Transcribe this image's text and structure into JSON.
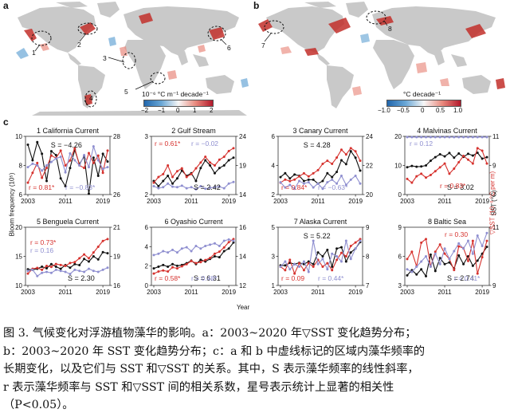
{
  "panel_labels": {
    "a": "a",
    "b": "b",
    "c": "c"
  },
  "map_a": {
    "colorbar_title": "10⁻⁶ °C m⁻¹ decade⁻¹",
    "colorbar_ticks": [
      "−2",
      "−1",
      "0",
      "1",
      "2"
    ],
    "region_labels": [
      "1",
      "2",
      "3",
      "4",
      "5",
      "6"
    ]
  },
  "map_b": {
    "colorbar_title": "°C decade⁻¹",
    "colorbar_ticks": [
      "−1.0",
      "−0.5",
      "0",
      "0.5",
      "1.0"
    ],
    "region_labels": [
      "7",
      "8"
    ]
  },
  "axes": {
    "ylabel_left": "Bloom frequency (10⁵)",
    "ylabel_right_red": "▽SST (10⁻⁶ °C per m)",
    "ylabel_right_blue": "SST (°C)",
    "xlabel": "Year"
  },
  "series_colors": {
    "bloom": "#111111",
    "grad": "#d6322e",
    "sst": "#8f8fd0"
  },
  "chart_data": [
    {
      "type": "line",
      "title": "1 California Current",
      "x": [
        2003,
        2004,
        2005,
        2006,
        2007,
        2008,
        2009,
        2010,
        2011,
        2012,
        2013,
        2014,
        2015,
        2016,
        2017,
        2018,
        2019,
        2020
      ],
      "series": [
        {
          "values": [
            9.6,
            8.4,
            9.8,
            8.9,
            6.8,
            9.1,
            8.8,
            7.0,
            6.4,
            7.8,
            9.2,
            8.1,
            8.7,
            5.8,
            8.6,
            7.2,
            8.9,
            8.3
          ]
        },
        {
          "values": [
            7.8,
            8.2,
            8.6,
            8.0,
            8.4,
            8.9,
            8.8,
            9.1,
            8.5,
            8.7,
            9.2,
            8.5,
            8.4,
            9.0,
            8.6,
            8.9,
            8.2,
            9.1
          ]
        },
        {
          "values": [
            26.4,
            26.6,
            26.5,
            26.2,
            26.5,
            26.7,
            26.9,
            27.0,
            26.1,
            27.2,
            26.8,
            26.5,
            27.1,
            26.4,
            27.6,
            26.8,
            26.3,
            26.4
          ]
        }
      ],
      "annotations": {
        "s": "S = −4.26",
        "r_grad": "r = 0.81*",
        "r_sst": "r = −0.83*"
      },
      "left_ticks": [
        "6",
        "8",
        "10"
      ],
      "right_ticks": [
        "26",
        "28"
      ],
      "ylim_left": [
        6,
        10
      ],
      "ylim_right": [
        25,
        28
      ]
    },
    {
      "type": "line",
      "title": "2 Gulf Stream",
      "x": [
        2003,
        2004,
        2005,
        2006,
        2007,
        2008,
        2009,
        2010,
        2011,
        2012,
        2013,
        2014,
        2015,
        2016,
        2017,
        2018,
        2019,
        2020
      ],
      "series": [
        {
          "values": [
            2.4,
            2.2,
            2.4,
            2.6,
            2.3,
            2.5,
            2.8,
            2.6,
            2.7,
            2.4,
            2.9,
            3.2,
            3.0,
            2.7,
            2.9,
            3.0,
            3.2,
            3.3
          ]
        },
        {
          "values": [
            2.3,
            2.5,
            2.6,
            2.9,
            2.5,
            2.7,
            2.8,
            2.5,
            2.6,
            2.8,
            3.0,
            3.2,
            3.0,
            2.9,
            3.1,
            3.2,
            3.4,
            3.5
          ]
        },
        {
          "values": [
            15.0,
            14.6,
            14.8,
            15.5,
            14.9,
            14.8,
            15.1,
            14.6,
            14.8,
            14.4,
            15.0,
            14.5,
            14.7,
            14.8,
            14.9,
            14.6,
            15.5,
            15.8
          ]
        }
      ],
      "annotations": {
        "s": "S = 2.42",
        "r_grad": "r = 0.61*",
        "r_sst": "r = −0.02"
      },
      "left_ticks": [
        "2",
        "3"
      ],
      "right_ticks": [
        "14",
        "19",
        "24"
      ],
      "ylim_left": [
        2,
        4
      ],
      "ylim_right": [
        14,
        24
      ]
    },
    {
      "type": "line",
      "title": "3 Canary Current",
      "x": [
        2003,
        2004,
        2005,
        2006,
        2007,
        2008,
        2009,
        2010,
        2011,
        2012,
        2013,
        2014,
        2015,
        2016,
        2017,
        2018,
        2019,
        2020
      ],
      "series": [
        {
          "values": [
            3.1,
            3.4,
            3.0,
            3.3,
            3.2,
            2.8,
            2.9,
            2.9,
            2.6,
            2.8,
            3.4,
            3.1,
            3.5,
            4.4,
            4.1,
            5.1,
            4.6,
            3.6
          ]
        },
        {
          "values": [
            3.0,
            3.2,
            3.1,
            3.2,
            3.4,
            3.6,
            3.4,
            3.6,
            3.8,
            4.2,
            4.4,
            4.2,
            4.6,
            5.1,
            4.8,
            5.2,
            5.0,
            4.4
          ]
        },
        {
          "values": [
            20.7,
            20.3,
            20.5,
            20.2,
            20.8,
            20.6,
            20.7,
            20.3,
            20.6,
            20.2,
            20.7,
            20.9,
            20.6,
            21.2,
            20.5,
            20.9,
            21.2,
            20.6
          ]
        }
      ],
      "annotations": {
        "s": "S = 4.28",
        "r_grad": "r = 0.84*",
        "r_sst": "r = −0.63*"
      },
      "left_ticks": [
        "2",
        "4",
        "6"
      ],
      "right_ticks": [
        "20",
        "22",
        "24"
      ],
      "ylim_left": [
        2,
        6
      ],
      "ylim_right": [
        20,
        24
      ]
    },
    {
      "type": "line",
      "title": "4 Malvinas Current",
      "x": [
        2003,
        2004,
        2005,
        2006,
        2007,
        2008,
        2009,
        2010,
        2011,
        2012,
        2013,
        2014,
        2015,
        2016,
        2017,
        2018,
        2019,
        2020
      ],
      "series": [
        {
          "values": [
            9.3,
            9.8,
            9.5,
            9.6,
            10.0,
            11.8,
            13.2,
            14.3,
            13.5,
            14.8,
            13.0,
            14.6,
            13.3,
            14.5,
            13.8,
            14.9,
            12.6,
            13.2
          ]
        },
        {
          "values": [
            12.6,
            12.3,
            12.8,
            13.0,
            12.7,
            12.9,
            13.2,
            13.5,
            13.8,
            13.0,
            13.4,
            13.9,
            14.4,
            14.1,
            13.8,
            15.0,
            14.8,
            13.8
          ]
        },
        {
          "values": [
            11.8,
            11.9,
            11.6,
            11.3,
            11.4,
            11.5,
            11.6,
            11.5,
            11.6,
            11.3,
            11.8,
            11.5,
            11.7,
            11.8,
            11.4,
            11.7,
            11.7,
            12.0
          ]
        }
      ],
      "annotations": {
        "s": "S = 3.02",
        "r_grad": "r = 0.83*",
        "r_sst": "r = 0.12"
      },
      "left_ticks": [
        "0",
        "10",
        "20"
      ],
      "right_ticks": [
        "7",
        "9",
        "11"
      ],
      "ylim_left": [
        0,
        20
      ],
      "ylim_right": [
        7,
        11
      ]
    },
    {
      "type": "line",
      "title": "5 Benguela Current",
      "x": [
        2003,
        2004,
        2005,
        2006,
        2007,
        2008,
        2009,
        2010,
        2011,
        2012,
        2013,
        2014,
        2015,
        2016,
        2017,
        2018,
        2019,
        2020
      ],
      "series": [
        {
          "values": [
            12.5,
            12.4,
            12.6,
            13.0,
            12.7,
            13.5,
            13.0,
            12.6,
            13.3,
            12.8,
            13.5,
            13.3,
            14.5,
            14.0,
            15.0,
            14.4,
            15.8,
            15.6
          ]
        },
        {
          "values": [
            12.4,
            12.9,
            13.0,
            12.8,
            13.2,
            13.1,
            13.4,
            13.3,
            13.2,
            13.5,
            13.6,
            14.0,
            14.4,
            14.0,
            14.6,
            15.2,
            15.8,
            16.0
          ]
        },
        {
          "values": [
            17.1,
            17.2,
            16.6,
            16.9,
            17.0,
            16.9,
            17.2,
            17.1,
            17.0,
            16.8,
            17.2,
            17.1,
            17.0,
            17.3,
            17.1,
            17.0,
            17.2,
            17.4
          ]
        }
      ],
      "annotations": {
        "s": "S = 2.30",
        "r_grad": "r = 0.73*",
        "r_sst": "r = 0.16"
      },
      "left_ticks": [
        "10",
        "15",
        "20"
      ],
      "right_ticks": [
        "16",
        "19",
        "21"
      ],
      "ylim_left": [
        10,
        20
      ],
      "ylim_right": [
        16,
        21
      ]
    },
    {
      "type": "line",
      "title": "6 Oyashio Current",
      "x": [
        2003,
        2004,
        2005,
        2006,
        2007,
        2008,
        2009,
        2010,
        2011,
        2012,
        2013,
        2014,
        2015,
        2016,
        2017,
        2018,
        2019,
        2020
      ],
      "series": [
        {
          "values": [
            1.6,
            1.8,
            2.0,
            1.8,
            2.1,
            1.9,
            2.0,
            2.2,
            2.5,
            2.1,
            2.6,
            2.4,
            2.7,
            3.0,
            2.9,
            3.6,
            3.9,
            4.6
          ]
        },
        {
          "values": [
            1.3,
            1.5,
            1.6,
            1.5,
            1.9,
            1.8,
            2.0,
            2.2,
            2.5,
            2.3,
            2.4,
            2.6,
            2.8,
            3.2,
            3.4,
            3.8,
            4.3,
            4.6
          ]
        },
        {
          "values": [
            14.1,
            14.2,
            14.4,
            14.3,
            14.5,
            14.3,
            14.6,
            14.7,
            14.4,
            14.8,
            14.6,
            14.8,
            14.9,
            15.0,
            14.8,
            15.2,
            15.3,
            15.2
          ]
        }
      ],
      "annotations": {
        "s": "S = 6.31",
        "r_grad": "r = 0.58*",
        "r_sst": "r = 0.48*"
      },
      "left_ticks": [
        "0",
        "2",
        "4",
        "6"
      ],
      "right_ticks": [
        "12",
        "14",
        "16"
      ],
      "ylim_left": [
        0,
        6
      ],
      "ylim_right": [
        12,
        16
      ]
    },
    {
      "type": "line",
      "title": "7 Alaska Current",
      "x": [
        2003,
        2004,
        2005,
        2006,
        2007,
        2008,
        2009,
        2010,
        2011,
        2012,
        2013,
        2014,
        2015,
        2016,
        2017,
        2018,
        2019,
        2020
      ],
      "series": [
        {
          "values": [
            2.3,
            2.3,
            2.5,
            2.4,
            2.5,
            2.4,
            2.6,
            2.4,
            3.3,
            3.0,
            3.5,
            2.2,
            3.6,
            3.7,
            2.6,
            3.3,
            3.6,
            4.1
          ]
        },
        {
          "values": [
            2.4,
            2.3,
            2.6,
            2.2,
            2.5,
            2.3,
            2.5,
            2.4,
            2.6,
            2.4,
            2.5,
            2.3,
            2.6,
            2.8,
            2.7,
            3.0,
            3.1,
            3.2
          ]
        },
        {
          "values": [
            7.6,
            7.8,
            7.5,
            7.7,
            7.6,
            7.8,
            7.4,
            8.6,
            7.7,
            7.9,
            7.5,
            8.1,
            8.0,
            7.8,
            8.6,
            7.9,
            8.3,
            8.6
          ]
        }
      ],
      "annotations": {
        "s": "S = 5.22",
        "r_grad": "r = 0.09",
        "r_sst": "r = 0.44*"
      },
      "left_ticks": [
        "1",
        "3",
        "5"
      ],
      "right_ticks": [
        "7",
        "8",
        "9"
      ],
      "ylim_left": [
        1,
        5
      ],
      "ylim_right": [
        7,
        9
      ]
    },
    {
      "type": "line",
      "title": "8 Baltic Sea",
      "x": [
        2003,
        2004,
        2005,
        2006,
        2007,
        2008,
        2009,
        2010,
        2011,
        2012,
        2013,
        2014,
        2015,
        2016,
        2017,
        2018,
        2019,
        2020
      ],
      "series": [
        {
          "values": [
            3.8,
            4.4,
            3.9,
            4.5,
            3.7,
            6.2,
            4.3,
            5.8,
            5.1,
            5.3,
            4.6,
            6.1,
            5.1,
            6.0,
            4.9,
            5.5,
            6.3,
            7.1
          ]
        },
        {
          "values": [
            7.8,
            8.2,
            7.4,
            8.7,
            8.9,
            7.4,
            8.2,
            8.6,
            8.1,
            7.8,
            7.2,
            8.5,
            8.4,
            7.7,
            8.8,
            7.0,
            7.9,
            8.8
          ]
        },
        {
          "values": [
            9.5,
            9.4,
            9.6,
            9.8,
            10.0,
            9.6,
            10.1,
            9.7,
            10.3,
            9.9,
            10.2,
            10.5,
            10.3,
            10.6,
            10.1,
            10.8,
            10.4,
            10.9
          ]
        }
      ],
      "annotations": {
        "s": "S = 2.74",
        "r_grad": "r = 0.30",
        "r_sst": "r = 0.41*"
      },
      "left_ticks": [
        "3",
        "6",
        "9"
      ],
      "right_ticks": [
        "9",
        "11"
      ],
      "ylim_left": [
        3,
        9
      ],
      "ylim_right": [
        9,
        11
      ]
    }
  ],
  "xtick_labels": [
    "2003",
    "2011",
    "2019"
  ],
  "caption_lines": [
    "图 3. 气候变化对浮游植物藻华的影响。a：2003~2020 年▽SST 变化趋势分布；",
    "b：2003~2020 年 SST 变化趋势分布；c：a 和 b 中虚线标记的区域内藻华频率的",
    "长期变化，以及它们与 SST 和▽SST 的关系。其中，S 表示藻华频率的线性斜率，",
    "r 表示藻华频率与 SST 和▽SST 间的相关系数，星号表示统计上显著的相关性",
    "（P<0.05）。"
  ]
}
